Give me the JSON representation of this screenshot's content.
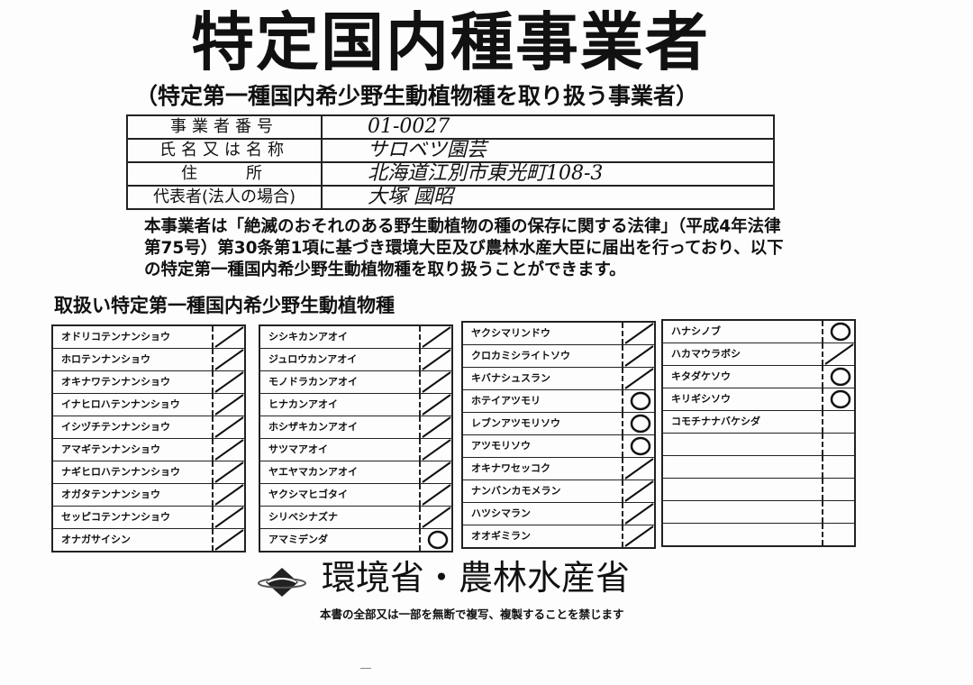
{
  "title": "特定国内種事業者",
  "subtitle": "（特定第一種国内希少野生動植物種を取り扱う事業者）",
  "info": [
    {
      "label": "事業者番号",
      "value": "01-0027"
    },
    {
      "label": "氏名又は名称",
      "value": "サロベツ園芸"
    },
    {
      "label": "住　　所",
      "value": "北海道江別市東光町108-3"
    },
    {
      "label": "代表者(法人の場合)",
      "value": "大塚 國昭"
    }
  ],
  "paragraph": "本事業者は「絶滅のおそれのある野生動植物の種の保存に関する法律」（平成4年法律第75号）第30条第1項に基づき環境大臣及び農林水産大臣に届出を行っており、以下の特定第一種国内希少野生動植物種を取り扱うことができます。",
  "section_title": "取扱い特定第一種国内希少野生動植物種",
  "columns": [
    [
      {
        "name": "オドリコテンナンショウ",
        "mark": "slash"
      },
      {
        "name": "ホロテンナンショウ",
        "mark": "slash"
      },
      {
        "name": "オキナワテンナンショウ",
        "mark": "slash"
      },
      {
        "name": "イナヒロハテンナンショウ",
        "mark": "slash"
      },
      {
        "name": "イシヅチテンナンショウ",
        "mark": "slash"
      },
      {
        "name": "アマギテンナンショウ",
        "mark": "slash"
      },
      {
        "name": "ナギヒロハテンナンショウ",
        "mark": "slash"
      },
      {
        "name": "オガタテンナンショウ",
        "mark": "slash"
      },
      {
        "name": "セッピコテンナンショウ",
        "mark": "slash"
      },
      {
        "name": "オナガサイシン",
        "mark": "slash"
      }
    ],
    [
      {
        "name": "シシキカンアオイ",
        "mark": "slash"
      },
      {
        "name": "ジュロウカンアオイ",
        "mark": "slash"
      },
      {
        "name": "モノドラカンアオイ",
        "mark": "slash"
      },
      {
        "name": "ヒナカンアオイ",
        "mark": "slash"
      },
      {
        "name": "ホシザキカンアオイ",
        "mark": "slash"
      },
      {
        "name": "サツマアオイ",
        "mark": "slash"
      },
      {
        "name": "ヤエヤマカンアオイ",
        "mark": "slash"
      },
      {
        "name": "ヤクシマヒゴタイ",
        "mark": "slash"
      },
      {
        "name": "シリベシナズナ",
        "mark": "slash"
      },
      {
        "name": "アマミデンダ",
        "mark": "circle"
      }
    ],
    [
      {
        "name": "ヤクシマリンドウ",
        "mark": "slash"
      },
      {
        "name": "クロカミシライトソウ",
        "mark": "slash"
      },
      {
        "name": "キバナシュスラン",
        "mark": "slash"
      },
      {
        "name": "ホテイアツモリ",
        "mark": "circle"
      },
      {
        "name": "レブンアツモリソウ",
        "mark": "circle"
      },
      {
        "name": "アツモリソウ",
        "mark": "circle"
      },
      {
        "name": "オキナワセッコク",
        "mark": "slash"
      },
      {
        "name": "ナンバンカモメラン",
        "mark": "slash"
      },
      {
        "name": "ハツシマラン",
        "mark": "slash"
      },
      {
        "name": "オオギミラン",
        "mark": "slash"
      }
    ],
    [
      {
        "name": "ハナシノブ",
        "mark": "circle"
      },
      {
        "name": "ハカマウラボシ",
        "mark": "slash"
      },
      {
        "name": "キタダケソウ",
        "mark": "circle"
      },
      {
        "name": "キリギシソウ",
        "mark": "circle"
      },
      {
        "name": "コモチナナバケシダ",
        "mark": "none"
      },
      {
        "name": "",
        "mark": "none"
      },
      {
        "name": "",
        "mark": "none"
      },
      {
        "name": "",
        "mark": "none"
      },
      {
        "name": "",
        "mark": "none"
      },
      {
        "name": "",
        "mark": "none"
      }
    ]
  ],
  "ministry": {
    "name": "環境省・農林水産省",
    "logo_icon": "ministry-emblem-icon"
  },
  "notice": "本書の全部又は一部を無断で複写、複製することを禁じます"
}
